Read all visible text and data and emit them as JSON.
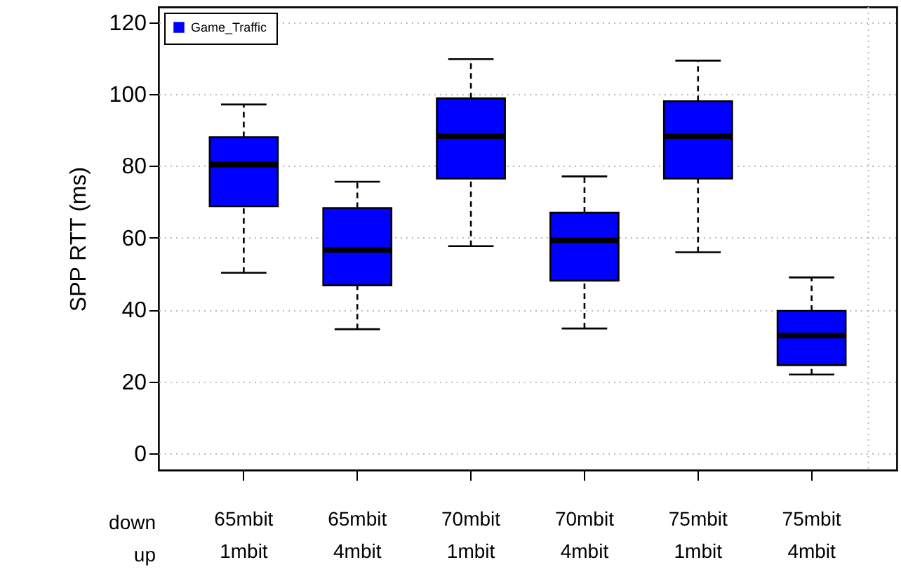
{
  "chart_data": {
    "type": "box",
    "ylabel": "SPP RTT (ms)",
    "categories": [
      "65mbit\n1mbit",
      "65mbit\n4mbit",
      "70mbit\n1mbit",
      "70mbit\n4mbit",
      "75mbit\n1mbit",
      "75mbit\n4mbit"
    ],
    "series": [
      {
        "name": "Game_Traffic",
        "color": "#0000ff",
        "boxes": [
          {
            "low": 50.3,
            "q1": 68.8,
            "median": 80.4,
            "q3": 88.0,
            "high": 97.1
          },
          {
            "low": 34.6,
            "q1": 46.8,
            "median": 56.7,
            "q3": 68.3,
            "high": 75.6
          },
          {
            "low": 57.7,
            "q1": 76.5,
            "median": 88.3,
            "q3": 98.8,
            "high": 109.7
          },
          {
            "low": 34.8,
            "q1": 48.1,
            "median": 59.3,
            "q3": 67.0,
            "high": 77.1
          },
          {
            "low": 56.0,
            "q1": 76.5,
            "median": 88.3,
            "q3": 98.0,
            "high": 109.3
          },
          {
            "low": 22.0,
            "q1": 24.6,
            "median": 32.8,
            "q3": 39.7,
            "high": 49.0
          }
        ]
      }
    ],
    "ylim": [
      -4.6,
      124.2
    ],
    "yticks": [
      0,
      20,
      40,
      60,
      80,
      100,
      120
    ],
    "grid": true,
    "legend": "top left",
    "line_style": "dashed",
    "annotations": [
      "down",
      "up"
    ]
  }
}
